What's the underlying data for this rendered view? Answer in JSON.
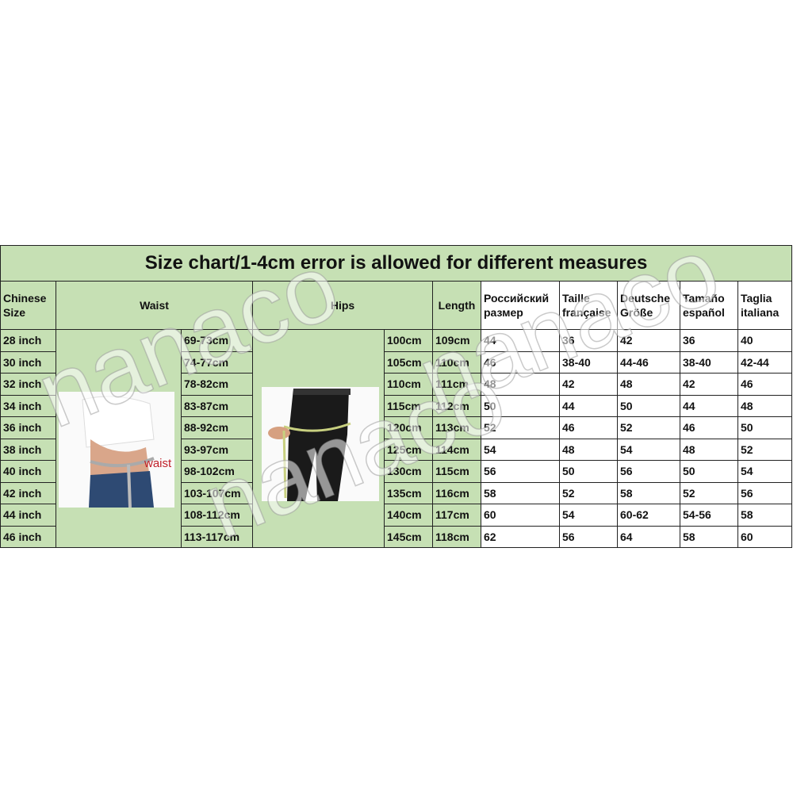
{
  "title": "Size chart/1-4cm error is allowed for different measures",
  "headers": {
    "chinese_size": "Chinese Size",
    "waist": "Waist",
    "hips": "Hips",
    "length": "Length",
    "ru": "Российский размер",
    "fr": "Taille française",
    "de": "Deutsche Größe",
    "es": "Tamaño español",
    "it": "Taglia italiana"
  },
  "waist_image_label": "waist",
  "watermark": "nanaco",
  "rows": [
    {
      "size": "28 inch",
      "waist": "69-73cm",
      "hips": "100cm",
      "length": "109cm",
      "ru": "44",
      "fr": "36",
      "de": "42",
      "es": "36",
      "it": "40"
    },
    {
      "size": "30 inch",
      "waist": "74-77cm",
      "hips": "105cm",
      "length": "110cm",
      "ru": "46",
      "fr": "38-40",
      "de": "44-46",
      "es": "38-40",
      "it": "42-44"
    },
    {
      "size": "32 inch",
      "waist": "78-82cm",
      "hips": "110cm",
      "length": "111cm",
      "ru": "48",
      "fr": "42",
      "de": "48",
      "es": "42",
      "it": "46"
    },
    {
      "size": "34 inch",
      "waist": "83-87cm",
      "hips": "115cm",
      "length": "112cm",
      "ru": "50",
      "fr": "44",
      "de": "50",
      "es": "44",
      "it": "48"
    },
    {
      "size": "36 inch",
      "waist": "88-92cm",
      "hips": "120cm",
      "length": "113cm",
      "ru": "52",
      "fr": "46",
      "de": "52",
      "es": "46",
      "it": "50"
    },
    {
      "size": "38 inch",
      "waist": "93-97cm",
      "hips": "125cm",
      "length": "114cm",
      "ru": "54",
      "fr": "48",
      "de": "54",
      "es": "48",
      "it": "52"
    },
    {
      "size": "40 inch",
      "waist": "98-102cm",
      "hips": "130cm",
      "length": "115cm",
      "ru": "56",
      "fr": "50",
      "de": "56",
      "es": "50",
      "it": "54"
    },
    {
      "size": "42 inch",
      "waist": "103-107cm",
      "hips": "135cm",
      "length": "116cm",
      "ru": "58",
      "fr": "52",
      "de": "58",
      "es": "52",
      "it": "56"
    },
    {
      "size": "44 inch",
      "waist": "108-112cm",
      "hips": "140cm",
      "length": "117cm",
      "ru": "60",
      "fr": "54",
      "de": "60-62",
      "es": "54-56",
      "it": "58"
    },
    {
      "size": "46 inch",
      "waist": "113-117cm",
      "hips": "145cm",
      "length": "118cm",
      "ru": "62",
      "fr": "56",
      "de": "64",
      "es": "58",
      "it": "60"
    }
  ]
}
